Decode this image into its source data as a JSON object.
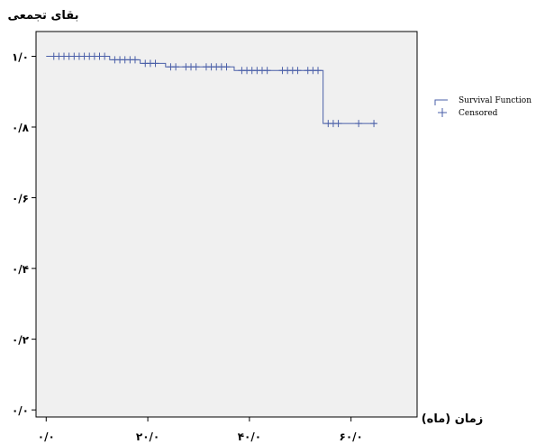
{
  "chart_data": {
    "type": "line",
    "ylabel": "بقاى تجمعى",
    "xlabel": "زمان (ماه)",
    "xlim": [
      -2,
      73
    ],
    "ylim": [
      -0.02,
      1.07
    ],
    "x_ticks": [
      0,
      20,
      40,
      60
    ],
    "x_tick_labels": [
      "۰/۰",
      "۲۰/۰",
      "۴۰/۰",
      "۶۰/۰"
    ],
    "y_ticks": [
      0,
      0.2,
      0.4,
      0.6,
      0.8,
      1.0
    ],
    "y_tick_labels": [
      "۰/۰",
      "۰/۲",
      "۰/۴",
      "۰/۶",
      "۰/۸",
      "۱/۰"
    ],
    "grid": false,
    "legend_position": "right",
    "series": [
      {
        "name": "Survival Function",
        "color": "#4a5fa8",
        "step_x": [
          0,
          12.5,
          18.5,
          23.5,
          37.0,
          54.5,
          65.0
        ],
        "step_y": [
          1.0,
          0.99,
          0.98,
          0.97,
          0.96,
          0.81,
          0.81
        ]
      }
    ],
    "censored": {
      "name": "Censored",
      "color": "#4a5fa8",
      "x": [
        1.5,
        2.5,
        3.5,
        4.5,
        5.5,
        6.5,
        7.5,
        8.5,
        9.5,
        10.5,
        11.5,
        13.5,
        14.5,
        15.5,
        16.5,
        17.5,
        19.5,
        20.5,
        21.5,
        24.5,
        25.5,
        27.5,
        28.5,
        29.5,
        31.5,
        32.5,
        33.5,
        34.5,
        35.5,
        38.5,
        39.5,
        40.5,
        41.5,
        42.5,
        43.5,
        46.5,
        47.5,
        48.5,
        49.5,
        51.5,
        52.5,
        53.5,
        55.5,
        56.5,
        57.5,
        61.5,
        64.5
      ]
    }
  }
}
